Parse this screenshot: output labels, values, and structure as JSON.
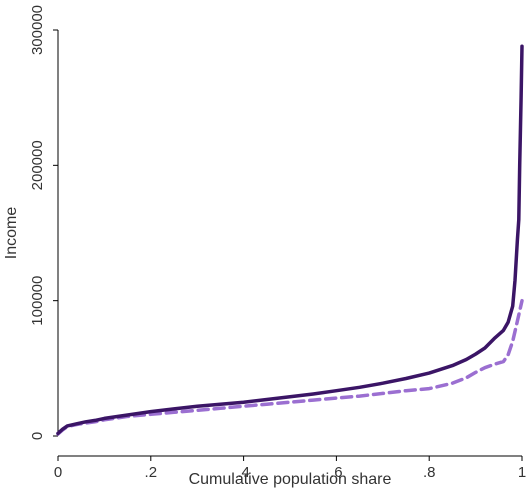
{
  "chart_data": {
    "type": "line",
    "title": "",
    "xlabel": "Cumulative population share",
    "ylabel": "Income",
    "xlim": [
      0,
      1
    ],
    "ylim": [
      0,
      300000
    ],
    "x_ticks": [
      0,
      0.2,
      0.4,
      0.6,
      0.8,
      1
    ],
    "x_tick_labels": [
      "0",
      ".2",
      ".4",
      ".6",
      ".8",
      "1"
    ],
    "y_ticks": [
      0,
      100000,
      200000,
      300000
    ],
    "y_tick_labels": [
      "0",
      "100000",
      "200000",
      "300000"
    ],
    "grid": false,
    "legend": "none",
    "series": [
      {
        "color": "#3b1566",
        "line_style": "solid",
        "points": [
          [
            0.0,
            2000
          ],
          [
            0.01,
            5000
          ],
          [
            0.02,
            7500
          ],
          [
            0.04,
            9000
          ],
          [
            0.06,
            10500
          ],
          [
            0.08,
            11500
          ],
          [
            0.1,
            13000
          ],
          [
            0.15,
            15500
          ],
          [
            0.2,
            18000
          ],
          [
            0.25,
            20000
          ],
          [
            0.3,
            22000
          ],
          [
            0.35,
            23500
          ],
          [
            0.4,
            25000
          ],
          [
            0.45,
            27000
          ],
          [
            0.5,
            29000
          ],
          [
            0.55,
            31000
          ],
          [
            0.6,
            33500
          ],
          [
            0.65,
            36000
          ],
          [
            0.7,
            39000
          ],
          [
            0.75,
            42500
          ],
          [
            0.8,
            46500
          ],
          [
            0.85,
            52000
          ],
          [
            0.88,
            56500
          ],
          [
            0.9,
            60500
          ],
          [
            0.92,
            65000
          ],
          [
            0.94,
            72000
          ],
          [
            0.96,
            78000
          ],
          [
            0.97,
            84000
          ],
          [
            0.98,
            96000
          ],
          [
            0.985,
            115000
          ],
          [
            0.99,
            145000
          ],
          [
            0.993,
            160000
          ],
          [
            0.995,
            200000
          ],
          [
            0.998,
            250000
          ],
          [
            1.0,
            288000
          ]
        ]
      },
      {
        "color": "#9b6fd1",
        "line_style": "dashed",
        "points": [
          [
            0.0,
            1500
          ],
          [
            0.01,
            4500
          ],
          [
            0.02,
            7000
          ],
          [
            0.04,
            8500
          ],
          [
            0.06,
            9500
          ],
          [
            0.08,
            10500
          ],
          [
            0.1,
            12000
          ],
          [
            0.15,
            14500
          ],
          [
            0.2,
            16000
          ],
          [
            0.25,
            17500
          ],
          [
            0.3,
            19000
          ],
          [
            0.35,
            20500
          ],
          [
            0.4,
            22000
          ],
          [
            0.45,
            23500
          ],
          [
            0.5,
            25000
          ],
          [
            0.55,
            26500
          ],
          [
            0.6,
            28000
          ],
          [
            0.65,
            29500
          ],
          [
            0.7,
            31500
          ],
          [
            0.75,
            33500
          ],
          [
            0.8,
            35000
          ],
          [
            0.85,
            39000
          ],
          [
            0.88,
            43000
          ],
          [
            0.9,
            47000
          ],
          [
            0.92,
            50500
          ],
          [
            0.94,
            53000
          ],
          [
            0.96,
            55000
          ],
          [
            0.97,
            60000
          ],
          [
            0.98,
            70000
          ],
          [
            0.99,
            85000
          ],
          [
            1.0,
            100000
          ]
        ]
      }
    ]
  }
}
